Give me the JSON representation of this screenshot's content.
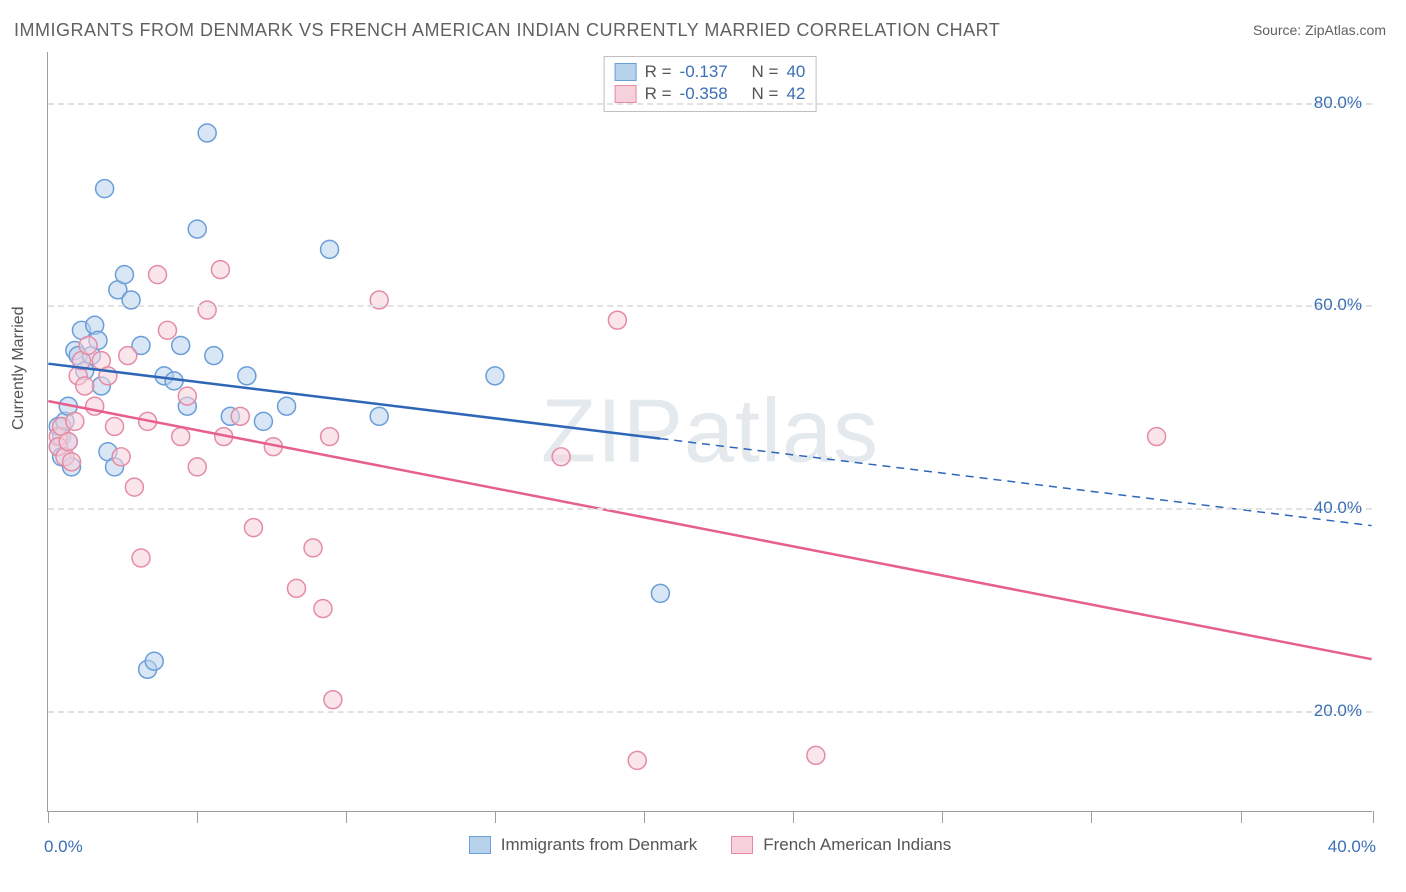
{
  "title": "IMMIGRANTS FROM DENMARK VS FRENCH AMERICAN INDIAN CURRENTLY MARRIED CORRELATION CHART",
  "source_label": "Source:",
  "source_name": "ZipAtlas.com",
  "watermark": "ZIPatlas",
  "ylabel": "Currently Married",
  "chart": {
    "type": "scatter",
    "background_color": "#ffffff",
    "grid_color": "#e2e2e2",
    "axis_color": "#9e9e9e",
    "tick_label_color": "#3b6fb6",
    "xlim": [
      0,
      40
    ],
    "ylim": [
      10,
      85
    ],
    "yticks": [
      20,
      40,
      60,
      80
    ],
    "ytick_labels": [
      "20.0%",
      "40.0%",
      "60.0%",
      "80.0%"
    ],
    "xticks_minor": [
      0,
      4.5,
      9,
      13.5,
      18,
      22.5,
      27,
      31.5,
      36,
      40
    ],
    "xtick_labels": {
      "left": "0.0%",
      "right": "40.0%"
    },
    "marker_radius": 9,
    "marker_stroke_width": 1.5,
    "line_width": 2.5
  },
  "series": [
    {
      "id": "denmark",
      "label": "Immigrants from Denmark",
      "fill_color": "#b9d2ec",
      "stroke_color": "#6a9ed8",
      "line_color": "#2e66b8",
      "R": "-0.137",
      "N": "40",
      "regression": {
        "x1": 0,
        "y1": 54.2,
        "x2": 40,
        "y2": 38.2,
        "solid_until_x": 18.5
      },
      "points": [
        [
          0.3,
          48.0
        ],
        [
          0.3,
          46.0
        ],
        [
          0.4,
          45.0
        ],
        [
          0.4,
          47.0
        ],
        [
          0.5,
          48.5
        ],
        [
          0.6,
          46.5
        ],
        [
          0.6,
          50.0
        ],
        [
          0.7,
          44.0
        ],
        [
          0.8,
          55.5
        ],
        [
          0.9,
          55.0
        ],
        [
          1.0,
          57.5
        ],
        [
          1.1,
          53.5
        ],
        [
          1.3,
          55.0
        ],
        [
          1.4,
          58.0
        ],
        [
          1.5,
          56.5
        ],
        [
          1.6,
          52.0
        ],
        [
          1.7,
          71.5
        ],
        [
          1.8,
          45.5
        ],
        [
          2.0,
          44.0
        ],
        [
          2.1,
          61.5
        ],
        [
          2.3,
          63.0
        ],
        [
          2.5,
          60.5
        ],
        [
          2.8,
          56.0
        ],
        [
          3.0,
          24.0
        ],
        [
          3.2,
          24.8
        ],
        [
          3.5,
          53.0
        ],
        [
          3.8,
          52.5
        ],
        [
          4.2,
          50.0
        ],
        [
          4.5,
          67.5
        ],
        [
          4.8,
          77.0
        ],
        [
          4.0,
          56.0
        ],
        [
          5.0,
          55.0
        ],
        [
          5.5,
          49.0
        ],
        [
          6.0,
          53.0
        ],
        [
          6.5,
          48.5
        ],
        [
          7.2,
          50.0
        ],
        [
          8.5,
          65.5
        ],
        [
          10.0,
          49.0
        ],
        [
          13.5,
          53.0
        ],
        [
          18.5,
          31.5
        ]
      ]
    },
    {
      "id": "french_ai",
      "label": "French American Indians",
      "fill_color": "#f6d0da",
      "stroke_color": "#e58ca5",
      "line_color": "#e65f8e",
      "R": "-0.358",
      "N": "42",
      "regression": {
        "x1": 0,
        "y1": 50.5,
        "x2": 40,
        "y2": 25.0,
        "solid_until_x": 40
      },
      "points": [
        [
          0.3,
          47.0
        ],
        [
          0.3,
          46.0
        ],
        [
          0.4,
          48.0
        ],
        [
          0.5,
          45.0
        ],
        [
          0.6,
          46.5
        ],
        [
          0.7,
          44.5
        ],
        [
          0.8,
          48.5
        ],
        [
          0.9,
          53.0
        ],
        [
          1.0,
          54.5
        ],
        [
          1.1,
          52.0
        ],
        [
          1.2,
          56.0
        ],
        [
          1.4,
          50.0
        ],
        [
          1.6,
          54.5
        ],
        [
          1.8,
          53.0
        ],
        [
          2.0,
          48.0
        ],
        [
          2.2,
          45.0
        ],
        [
          2.4,
          55.0
        ],
        [
          2.6,
          42.0
        ],
        [
          2.8,
          35.0
        ],
        [
          3.0,
          48.5
        ],
        [
          3.3,
          63.0
        ],
        [
          3.6,
          57.5
        ],
        [
          4.0,
          47.0
        ],
        [
          4.2,
          51.0
        ],
        [
          4.5,
          44.0
        ],
        [
          4.8,
          59.5
        ],
        [
          5.2,
          63.5
        ],
        [
          5.3,
          47.0
        ],
        [
          5.8,
          49.0
        ],
        [
          6.2,
          38.0
        ],
        [
          6.8,
          46.0
        ],
        [
          7.5,
          32.0
        ],
        [
          8.0,
          36.0
        ],
        [
          8.3,
          30.0
        ],
        [
          8.5,
          47.0
        ],
        [
          8.6,
          21.0
        ],
        [
          10.0,
          60.5
        ],
        [
          15.5,
          45.0
        ],
        [
          17.2,
          58.5
        ],
        [
          17.8,
          15.0
        ],
        [
          23.2,
          15.5
        ],
        [
          33.5,
          47.0
        ]
      ]
    }
  ],
  "legend_top": {
    "R_label": "R  =",
    "N_label": "N  ="
  }
}
